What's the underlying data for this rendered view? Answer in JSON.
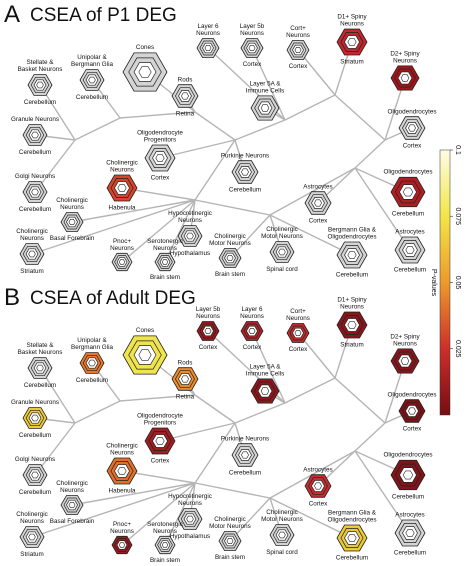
{
  "panels": [
    {
      "label": "A",
      "title": "CSEA of P1 DEG",
      "nodes": [
        {
          "label": [
            "Stellate &",
            "Basket Neurons"
          ],
          "region": "Cerebellum",
          "color": "#d4d4d4"
        },
        {
          "label": [
            "Unipolar &",
            "Bergmann Glia"
          ],
          "region": "Cerebellum",
          "color": "#d4d4d4"
        },
        {
          "label": [
            "Cones"
          ],
          "color": "#d4d4d4"
        },
        {
          "label": [
            "Rods"
          ],
          "region": "Retina",
          "color": "#d4d4d4"
        },
        {
          "label": [
            "Layer 6",
            "Neurons"
          ],
          "color": "#d4d4d4"
        },
        {
          "label": [
            "Layer 5b",
            "Neurons"
          ],
          "region": "Cortex",
          "color": "#d4d4d4"
        },
        {
          "label": [
            "Cort+",
            "Neurons"
          ],
          "region": "Cortex",
          "color": "#d4d4d4"
        },
        {
          "label": [
            "Layer 5A &",
            "Immune Cells"
          ],
          "color": "#d4d4d4"
        },
        {
          "label": [
            "D1+ Spiny",
            "Neurons"
          ],
          "region": "Striatum",
          "color": "#c1272d"
        },
        {
          "label": [
            "D2+ Spiny",
            "Neurons"
          ],
          "color": "#a4161b"
        },
        {
          "label": [
            "Oligodendrocytes"
          ],
          "region": "Cortex",
          "color": "#d4d4d4"
        },
        {
          "label": [
            "Oligodendrocytes"
          ],
          "region": "Cerebellum",
          "color": "#b01e23"
        },
        {
          "label": [
            "Granule Neurons"
          ],
          "region": "Cerebellum",
          "color": "#d4d4d4"
        },
        {
          "label": [
            "Oligodendrocyte",
            "Progenitors"
          ],
          "region": "Cortex",
          "color": "#d4d4d4"
        },
        {
          "label": [
            "Purkinje Neurons"
          ],
          "region": "Cerebellum",
          "color": "#d4d4d4"
        },
        {
          "label": [
            "Golgi Neurons"
          ],
          "region": "Cerebellum",
          "color": "#d4d4d4"
        },
        {
          "label": [
            "Cholinergic",
            "Neurons"
          ],
          "region": "Basal Forebrain",
          "color": "#d4d4d4"
        },
        {
          "label": [
            "Cholinergic",
            "Neurons"
          ],
          "region": "Habenula",
          "color": "#d8432b"
        },
        {
          "label": [
            "Hypocretinergic",
            "Neurons"
          ],
          "region": "Hypothalamus",
          "color": "#d4d4d4"
        },
        {
          "label": [
            "Astrocytes"
          ],
          "region": "Cortex",
          "color": "#d4d4d4"
        },
        {
          "label": [
            "Cholinergic",
            "Motor Neurons"
          ],
          "region": "Spinal cord",
          "color": "#d4d4d4"
        },
        {
          "label": [
            "Cholinergic",
            "Motor Neurons"
          ],
          "region": "Brain stem",
          "color": "#d4d4d4"
        },
        {
          "label": [
            "Cholinergic",
            "Neurons"
          ],
          "region": "Striatum",
          "color": "#d4d4d4"
        },
        {
          "label": [
            "Pnoc+",
            "Neurons"
          ],
          "color": "#d4d4d4"
        },
        {
          "label": [
            "Serotonergic",
            "Neurons"
          ],
          "region": "Brain stem",
          "color": "#d4d4d4"
        },
        {
          "label": [
            "Bergmann Glia &",
            "Oligodendrocytes"
          ],
          "region": "Cerebellum",
          "color": "#d4d4d4"
        },
        {
          "label": [
            "Astrocytes"
          ],
          "region": "Cerebellum",
          "color": "#d4d4d4"
        }
      ]
    },
    {
      "label": "B",
      "title": "CSEA of Adult DEG",
      "nodes": [
        {
          "label": [
            "Stellate &",
            "Basket Neurons"
          ],
          "region": "Cerebellum",
          "color": "#d4d4d4"
        },
        {
          "label": [
            "Unipolar &",
            "Bergmann Glia"
          ],
          "region": "Cerebellum",
          "color": "#e9782c"
        },
        {
          "label": [
            "Cones"
          ],
          "color": "#f0e44c"
        },
        {
          "label": [
            "Rods"
          ],
          "region": "Retina",
          "color": "#eb8c2c"
        },
        {
          "label": [
            "Layer 5b",
            "Neurons"
          ],
          "region": "Cortex",
          "color": "#9b1a1f"
        },
        {
          "label": [
            "Layer 6",
            "Neurons"
          ],
          "region": "Cortex",
          "color": "#b3222a"
        },
        {
          "label": [
            "Cort+",
            "Neurons"
          ],
          "region": "Cortex",
          "color": "#c42b2d"
        },
        {
          "label": [
            "Layer 5A &",
            "Immune Cells"
          ],
          "color": "#8f171c"
        },
        {
          "label": [
            "D1+ Spiny",
            "Neurons"
          ],
          "region": "Striatum",
          "color": "#8a161b"
        },
        {
          "label": [
            "D2+ Spiny",
            "Neurons"
          ],
          "color": "#8a161b"
        },
        {
          "label": [
            "Oligodendrocytes"
          ],
          "region": "Cortex",
          "color": "#7e1216"
        },
        {
          "label": [
            "Oligodendrocytes"
          ],
          "region": "Cerebellum",
          "color": "#801418"
        },
        {
          "label": [
            "Granule Neurons"
          ],
          "region": "Cerebellum",
          "color": "#ecca3a"
        },
        {
          "label": [
            "Oligodendrocyte",
            "Progenitors"
          ],
          "region": "Cortex",
          "color": "#a01d22"
        },
        {
          "label": [
            "Purkinje Neurons"
          ],
          "region": "Cerebellum",
          "color": "#d4d4d4"
        },
        {
          "label": [
            "Golgi Neurons"
          ],
          "region": "Cerebellum",
          "color": "#d4d4d4"
        },
        {
          "label": [
            "Cholinergic",
            "Neurons"
          ],
          "region": "Basal Forebrain",
          "color": "#d4d4d4"
        },
        {
          "label": [
            "Cholinergic",
            "Neurons"
          ],
          "region": "Habenula",
          "color": "#e2702c"
        },
        {
          "label": [
            "Hypocretinergic",
            "Neurons"
          ],
          "region": "Hypothalamus",
          "color": "#d4d4d4"
        },
        {
          "label": [
            "Astrocytes"
          ],
          "region": "Cortex",
          "color": "#c62d2e"
        },
        {
          "label": [
            "Cholinergic",
            "Motor Neurons"
          ],
          "region": "Spinal cord",
          "color": "#d4d4d4"
        },
        {
          "label": [
            "Cholinergic",
            "Motor Neurons"
          ],
          "region": "Brain stem",
          "color": "#d4d4d4"
        },
        {
          "label": [
            "Cholinergic",
            "Neurons"
          ],
          "region": "Striatum",
          "color": "#d4d4d4"
        },
        {
          "label": [
            "Pnoc+",
            "Neurons"
          ],
          "color": "#9e1c20"
        },
        {
          "label": [
            "Serotonergic",
            "Neurons"
          ],
          "region": "Brain stem",
          "color": "#d4d4d4"
        },
        {
          "label": [
            "Bergmann Glia &",
            "Oligodendrocytes"
          ],
          "region": "Cerebellum",
          "color": "#edc83e"
        },
        {
          "label": [
            "Astrocytes"
          ],
          "region": "Cerebellum",
          "color": "#d4d4d4"
        }
      ]
    }
  ],
  "colorbar": {
    "title": "P-values",
    "lim": [
      0,
      0.1
    ],
    "ticks": [
      0.1,
      0.075,
      0.05,
      0.025
    ]
  }
}
